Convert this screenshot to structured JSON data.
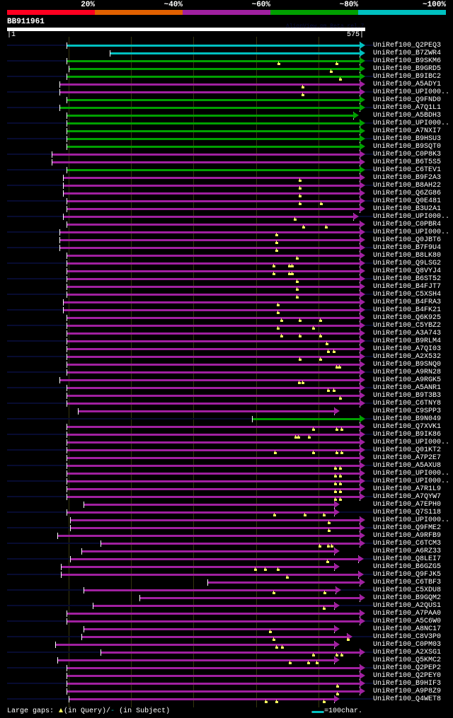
{
  "header": {
    "scale_labels": [
      "20%",
      "~40%",
      "~60%",
      "~80%",
      "~100%"
    ],
    "scale_colors": [
      "#ff0020",
      "#e06000",
      "#a020a0",
      "#00a000",
      "#00c0c0"
    ],
    "title": "BB911961",
    "watermark": "AlignView.pm Beta rel.7",
    "ruler_start": "1",
    "ruler_end": "575"
  },
  "query_length": 575,
  "identity_colors": {
    "cyan": "#00c0c0",
    "green": "#00a000",
    "magenta": "#a020a0"
  },
  "hits": [
    {
      "label": "UniRef100_Q2PEQ3",
      "color": "cyan",
      "start": 96,
      "end": 575,
      "gaps": []
    },
    {
      "label": "UniRef100_B7ZWR4",
      "color": "cyan",
      "start": 165,
      "end": 575,
      "gaps": []
    },
    {
      "label": "UniRef100_B9SKM6",
      "color": "green",
      "start": 96,
      "end": 575,
      "gaps": [
        436,
        529
      ]
    },
    {
      "label": "UniRef100_B9GRD5",
      "color": "green",
      "start": 100,
      "end": 575,
      "gaps": [
        519
      ]
    },
    {
      "label": "UniRef100_B9IBC2",
      "color": "green",
      "start": 96,
      "end": 575,
      "gaps": [
        534
      ]
    },
    {
      "label": "UniRef100_A5ADY1",
      "color": "magenta",
      "start": 85,
      "end": 575,
      "gaps": [
        474
      ]
    },
    {
      "label": "UniRef100_UPI000..",
      "color": "magenta",
      "start": 85,
      "end": 575,
      "gaps": [
        474
      ]
    },
    {
      "label": "UniRef100_Q9FND0",
      "color": "green",
      "start": 96,
      "end": 575,
      "gaps": []
    },
    {
      "label": "UniRef100_A7Q1L1",
      "color": "green",
      "start": 85,
      "end": 575,
      "gaps": []
    },
    {
      "label": "UniRef100_A5BDH3",
      "color": "green",
      "start": 96,
      "end": 565,
      "gaps": []
    },
    {
      "label": "UniRef100_UPI000..",
      "color": "green",
      "start": 96,
      "end": 575,
      "gaps": []
    },
    {
      "label": "UniRef100_A7NXI7",
      "color": "green",
      "start": 96,
      "end": 575,
      "gaps": []
    },
    {
      "label": "UniRef100_B9HSU3",
      "color": "green",
      "start": 96,
      "end": 575,
      "gaps": []
    },
    {
      "label": "UniRef100_B9SQT0",
      "color": "green",
      "start": 96,
      "end": 575,
      "gaps": []
    },
    {
      "label": "UniRef100_C0P8K3",
      "color": "magenta",
      "start": 72,
      "end": 575,
      "gaps": []
    },
    {
      "label": "UniRef100_B6T5S5",
      "color": "magenta",
      "start": 72,
      "end": 575,
      "gaps": []
    },
    {
      "label": "UniRef100_C6TEV1",
      "color": "green",
      "start": 96,
      "end": 575,
      "gaps": []
    },
    {
      "label": "UniRef100_B9F2A3",
      "color": "magenta",
      "start": 91,
      "end": 575,
      "gaps": [
        470
      ]
    },
    {
      "label": "UniRef100_B8AH22",
      "color": "magenta",
      "start": 91,
      "end": 575,
      "gaps": [
        470
      ]
    },
    {
      "label": "UniRef100_Q6ZG86",
      "color": "magenta",
      "start": 91,
      "end": 575,
      "gaps": [
        470
      ]
    },
    {
      "label": "UniRef100_Q0E481",
      "color": "magenta",
      "start": 96,
      "end": 575,
      "gaps": [
        470,
        504
      ]
    },
    {
      "label": "UniRef100_B3U2A1",
      "color": "magenta",
      "start": 96,
      "end": 575,
      "gaps": []
    },
    {
      "label": "UniRef100_UPI000..",
      "color": "magenta",
      "start": 91,
      "end": 565,
      "gaps": [
        462
      ]
    },
    {
      "label": "UniRef100_C0PBR4",
      "color": "magenta",
      "start": 96,
      "end": 575,
      "gaps": [
        475,
        511
      ]
    },
    {
      "label": "UniRef100_UPI000..",
      "color": "magenta",
      "start": 85,
      "end": 575,
      "gaps": [
        432
      ]
    },
    {
      "label": "UniRef100_Q0JBT6",
      "color": "magenta",
      "start": 85,
      "end": 575,
      "gaps": [
        432
      ]
    },
    {
      "label": "UniRef100_B7F9U4",
      "color": "magenta",
      "start": 85,
      "end": 575,
      "gaps": [
        432
      ]
    },
    {
      "label": "UniRef100_B8LK80",
      "color": "magenta",
      "start": 96,
      "end": 575,
      "gaps": [
        465
      ]
    },
    {
      "label": "UniRef100_Q9LSG2",
      "color": "magenta",
      "start": 96,
      "end": 575,
      "gaps": [
        428,
        452,
        457
      ]
    },
    {
      "label": "UniRef100_Q8VYJ4",
      "color": "magenta",
      "start": 96,
      "end": 575,
      "gaps": [
        428,
        452,
        457
      ]
    },
    {
      "label": "UniRef100_B6ST52",
      "color": "magenta",
      "start": 96,
      "end": 575,
      "gaps": [
        465
      ]
    },
    {
      "label": "UniRef100_B4FJT7",
      "color": "magenta",
      "start": 96,
      "end": 575,
      "gaps": [
        465
      ]
    },
    {
      "label": "UniRef100_C5XSH4",
      "color": "magenta",
      "start": 96,
      "end": 575,
      "gaps": [
        465
      ]
    },
    {
      "label": "UniRef100_B4FRA3",
      "color": "magenta",
      "start": 91,
      "end": 575,
      "gaps": [
        434
      ]
    },
    {
      "label": "UniRef100_B4FK21",
      "color": "magenta",
      "start": 91,
      "end": 575,
      "gaps": [
        434
      ]
    },
    {
      "label": "UniRef100_Q6K925",
      "color": "magenta",
      "start": 96,
      "end": 575,
      "gaps": [
        440,
        470,
        502
      ]
    },
    {
      "label": "UniRef100_C5YBZ2",
      "color": "magenta",
      "start": 96,
      "end": 575,
      "gaps": [
        434,
        491
      ]
    },
    {
      "label": "UniRef100_A3A743",
      "color": "magenta",
      "start": 96,
      "end": 575,
      "gaps": [
        440,
        470,
        502
      ]
    },
    {
      "label": "UniRef100_B9RLM4",
      "color": "magenta",
      "start": 96,
      "end": 575,
      "gaps": [
        513
      ]
    },
    {
      "label": "UniRef100_A7QI03",
      "color": "magenta",
      "start": 96,
      "end": 575,
      "gaps": [
        515,
        524
      ]
    },
    {
      "label": "UniRef100_A2X532",
      "color": "magenta",
      "start": 96,
      "end": 575,
      "gaps": [
        470,
        502
      ]
    },
    {
      "label": "UniRef100_B9SNQ0",
      "color": "magenta",
      "start": 96,
      "end": 575,
      "gaps": [
        529,
        533
      ]
    },
    {
      "label": "UniRef100_A9RN28",
      "color": "magenta",
      "start": 96,
      "end": 575,
      "gaps": []
    },
    {
      "label": "UniRef100_A9RGK5",
      "color": "magenta",
      "start": 85,
      "end": 575,
      "gaps": [
        468,
        474
      ]
    },
    {
      "label": "UniRef100_A5ANR1",
      "color": "magenta",
      "start": 96,
      "end": 575,
      "gaps": [
        515,
        524
      ]
    },
    {
      "label": "UniRef100_B9T3B3",
      "color": "magenta",
      "start": 96,
      "end": 575,
      "gaps": [
        534
      ]
    },
    {
      "label": "UniRef100_C6TNY8",
      "color": "magenta",
      "start": 96,
      "end": 575,
      "gaps": []
    },
    {
      "label": "UniRef100_C9SPP3",
      "color": "magenta",
      "start": 114,
      "end": 534,
      "gaps": []
    },
    {
      "label": "UniRef100_B9N049",
      "color": "green",
      "start": 393,
      "end": 575,
      "gaps": []
    },
    {
      "label": "UniRef100_Q7XVK1",
      "color": "magenta",
      "start": 96,
      "end": 575,
      "gaps": [
        491,
        529,
        536
      ]
    },
    {
      "label": "UniRef100_B9IK86",
      "color": "magenta",
      "start": 96,
      "end": 575,
      "gaps": [
        463,
        467,
        484
      ]
    },
    {
      "label": "UniRef100_UPI000..",
      "color": "magenta",
      "start": 96,
      "end": 575,
      "gaps": []
    },
    {
      "label": "UniRef100_Q01KT2",
      "color": "magenta",
      "start": 96,
      "end": 575,
      "gaps": [
        430,
        491,
        529,
        536
      ]
    },
    {
      "label": "UniRef100_A7P2E7",
      "color": "magenta",
      "start": 96,
      "end": 575,
      "gaps": []
    },
    {
      "label": "UniRef100_A5AXU8",
      "color": "magenta",
      "start": 96,
      "end": 575,
      "gaps": [
        526,
        534
      ]
    },
    {
      "label": "UniRef100_UPI000..",
      "color": "magenta",
      "start": 96,
      "end": 575,
      "gaps": [
        526,
        534
      ]
    },
    {
      "label": "UniRef100_UPI000..",
      "color": "magenta",
      "start": 96,
      "end": 575,
      "gaps": [
        526,
        534
      ]
    },
    {
      "label": "UniRef100_A7R1L9",
      "color": "magenta",
      "start": 96,
      "end": 575,
      "gaps": [
        526,
        534
      ]
    },
    {
      "label": "UniRef100_A7QYW7",
      "color": "magenta",
      "start": 96,
      "end": 575,
      "gaps": [
        526,
        534
      ]
    },
    {
      "label": "UniRef100_A7EPH0",
      "color": "magenta",
      "start": 124,
      "end": 534,
      "gaps": []
    },
    {
      "label": "UniRef100_Q7S118",
      "color": "magenta",
      "start": 96,
      "end": 534,
      "gaps": [
        429,
        477,
        508
      ]
    },
    {
      "label": "UniRef100_UPI000..",
      "color": "magenta",
      "start": 102,
      "end": 575,
      "gaps": [
        516
      ]
    },
    {
      "label": "UniRef100_Q9FME2",
      "color": "magenta",
      "start": 102,
      "end": 575,
      "gaps": [
        516
      ]
    },
    {
      "label": "UniRef100_A9RFB9",
      "color": "magenta",
      "start": 82,
      "end": 575,
      "gaps": []
    },
    {
      "label": "UniRef100_C6TCM3",
      "color": "magenta",
      "start": 151,
      "end": 575,
      "gaps": [
        501,
        515,
        521
      ]
    },
    {
      "label": "UniRef100_A6RZ33",
      "color": "magenta",
      "start": 120,
      "end": 534,
      "gaps": []
    },
    {
      "label": "UniRef100_Q8LEI7",
      "color": "magenta",
      "start": 102,
      "end": 573,
      "gaps": [
        514
      ]
    },
    {
      "label": "UniRef100_B6GZG5",
      "color": "magenta",
      "start": 87,
      "end": 534,
      "gaps": [
        398,
        414,
        434
      ]
    },
    {
      "label": "UniRef100_Q9FJK5",
      "color": "magenta",
      "start": 87,
      "end": 573,
      "gaps": [
        449
      ]
    },
    {
      "label": "UniRef100_C6TBF3",
      "color": "magenta",
      "start": 322,
      "end": 575,
      "gaps": []
    },
    {
      "label": "UniRef100_C5XDU8",
      "color": "magenta",
      "start": 124,
      "end": 536,
      "gaps": [
        428,
        509
      ]
    },
    {
      "label": "UniRef100_B9GQM2",
      "color": "magenta",
      "start": 213,
      "end": 575,
      "gaps": []
    },
    {
      "label": "UniRef100_A2QUS1",
      "color": "magenta",
      "start": 138,
      "end": 534,
      "gaps": [
        508
      ]
    },
    {
      "label": "UniRef100_A7PAA0",
      "color": "magenta",
      "start": 96,
      "end": 575,
      "gaps": []
    },
    {
      "label": "UniRef100_A5C6W0",
      "color": "magenta",
      "start": 96,
      "end": 575,
      "gaps": []
    },
    {
      "label": "UniRef100_A8NC17",
      "color": "magenta",
      "start": 124,
      "end": 534,
      "gaps": [
        422
      ]
    },
    {
      "label": "UniRef100_C8V3P0",
      "color": "magenta",
      "start": 120,
      "end": 555,
      "gaps": [
        428,
        547
      ]
    },
    {
      "label": "UniRef100_C0PM03",
      "color": "magenta",
      "start": 78,
      "end": 534,
      "gaps": [
        432,
        441
      ]
    },
    {
      "label": "UniRef100_A2XSG1",
      "color": "magenta",
      "start": 151,
      "end": 575,
      "gaps": [
        491,
        529,
        536
      ]
    },
    {
      "label": "UniRef100_Q5KMC2",
      "color": "magenta",
      "start": 82,
      "end": 534,
      "gaps": [
        454,
        483,
        497
      ]
    },
    {
      "label": "UniRef100_Q2PEP2",
      "color": "magenta",
      "start": 96,
      "end": 575,
      "gaps": []
    },
    {
      "label": "UniRef100_Q2PEY0",
      "color": "magenta",
      "start": 96,
      "end": 575,
      "gaps": []
    },
    {
      "label": "UniRef100_B9HIF3",
      "color": "magenta",
      "start": 96,
      "end": 575,
      "gaps": [
        530
      ]
    },
    {
      "label": "UniRef100_A9P8Z9",
      "color": "magenta",
      "start": 96,
      "end": 575,
      "gaps": [
        530
      ]
    },
    {
      "label": "UniRef100_Q4WET8",
      "color": "magenta",
      "start": 100,
      "end": 534,
      "gaps": [
        415,
        432,
        508
      ]
    }
  ],
  "footer": {
    "large_gaps_label": "Large gaps:",
    "in_query": "(in Query)/",
    "subject_gap_symbol": "-",
    "in_subject": " (in Subject)",
    "scale_label": "=100char."
  }
}
